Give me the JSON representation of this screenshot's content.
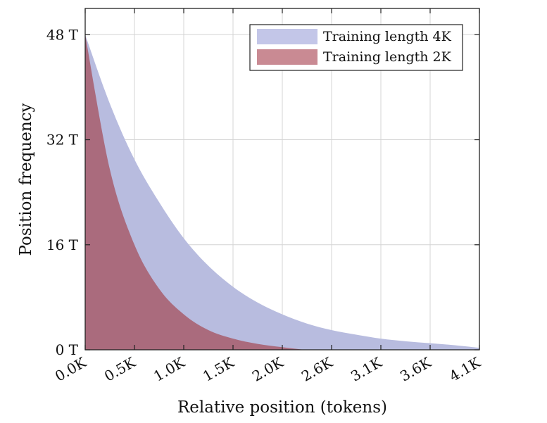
{
  "chart_data": {
    "type": "area",
    "title": "",
    "xlabel": "Relative position (tokens)",
    "ylabel": "Position frequency",
    "x_tick_labels": [
      "0.0K",
      "0.5K",
      "1.0K",
      "1.5K",
      "2.0K",
      "2.6K",
      "3.1K",
      "3.6K",
      "4.1K"
    ],
    "y_tick_labels": [
      "0 T",
      "16 T",
      "32 T",
      "48 T"
    ],
    "x": [
      0,
      0.25,
      0.5,
      0.75,
      1.0,
      1.25,
      1.5,
      1.75,
      2.0,
      2.25,
      2.5,
      2.75,
      3.0,
      3.25,
      3.5,
      3.75,
      4.0
    ],
    "xlim": [
      0,
      4.0
    ],
    "ylim": [
      0,
      52
    ],
    "grid": true,
    "legend_position": "top-right",
    "series": [
      {
        "name": "Training length 4K",
        "color": "#b8bcdf",
        "values": [
          48,
          37.5,
          29,
          22.5,
          17,
          12.8,
          9.6,
          7.2,
          5.4,
          4.0,
          3.0,
          2.3,
          1.7,
          1.3,
          1.0,
          0.7,
          0.3
        ]
      },
      {
        "name": "Training length 2K",
        "color": "#aa6b7d",
        "values": [
          48,
          27.5,
          16,
          9.3,
          5.4,
          3.0,
          1.7,
          0.9,
          0.4,
          0,
          0,
          0,
          0,
          0,
          0,
          0,
          0
        ]
      }
    ],
    "legend_swatch_colors": [
      "#c3c6e8",
      "#c98a93"
    ]
  }
}
